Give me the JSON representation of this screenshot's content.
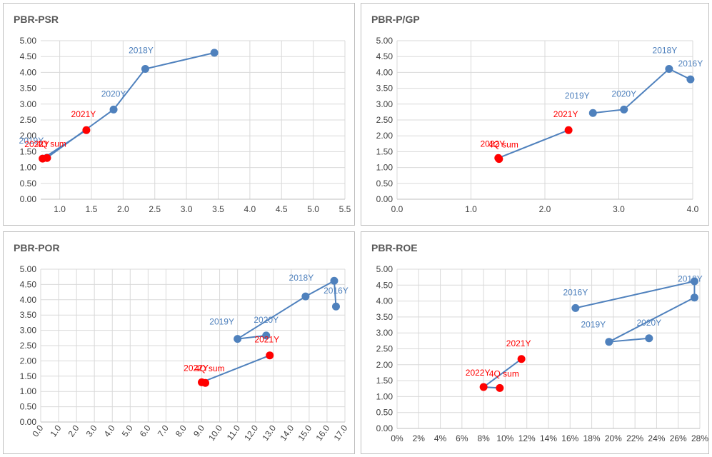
{
  "colors": {
    "blue": "#4f81bd",
    "red": "#ff0000",
    "grid": "#d9d9d9",
    "axis_text": "#404040"
  },
  "chart_data": [
    {
      "type": "scatter",
      "title": "PBR-PSR",
      "xlabel": "",
      "ylabel": "",
      "xlim": [
        0.7,
        5.5
      ],
      "ylim": [
        0,
        5
      ],
      "xticks": [
        "1.0",
        "1.5",
        "2.0",
        "2.5",
        "3.0",
        "3.5",
        "4.0",
        "4.5",
        "5.0",
        "5.5"
      ],
      "yticks": [
        "0.00",
        "0.50",
        "1.00",
        "1.50",
        "2.00",
        "2.50",
        "3.00",
        "3.50",
        "4.00",
        "4.50",
        "5.00"
      ],
      "grid": true,
      "series": [
        {
          "color": "blue",
          "points": [
            {
              "x": 3.44,
              "y": 4.62,
              "label": ""
            },
            {
              "x": 2.35,
              "y": 4.11,
              "label": "2018Y"
            },
            {
              "x": 1.85,
              "y": 2.83,
              "label": "2020Y"
            },
            {
              "x": 0.8,
              "y": 1.31,
              "label": "2019Y"
            }
          ]
        },
        {
          "color": "red",
          "points": [
            {
              "x": 1.42,
              "y": 2.18,
              "label": "2021Y"
            },
            {
              "x": 0.73,
              "y": 1.28,
              "label": "2022Y"
            },
            {
              "x": 0.8,
              "y": 1.3,
              "label": "4Q sum"
            }
          ]
        }
      ]
    },
    {
      "type": "scatter",
      "title": "PBR-P/GP",
      "xlabel": "",
      "ylabel": "",
      "xlim": [
        0,
        4
      ],
      "ylim": [
        0,
        5
      ],
      "xticks": [
        "0.0",
        "1.0",
        "2.0",
        "3.0",
        "4.0"
      ],
      "yticks": [
        "0.00",
        "0.50",
        "1.00",
        "1.50",
        "2.00",
        "2.50",
        "3.00",
        "3.50",
        "4.00",
        "4.50",
        "5.00"
      ],
      "grid": true,
      "series": [
        {
          "color": "blue",
          "points": [
            {
              "x": 3.97,
              "y": 3.78,
              "label": "2016Y"
            },
            {
              "x": 3.68,
              "y": 4.11,
              "label": "2018Y"
            },
            {
              "x": 3.07,
              "y": 2.83,
              "label": "2020Y"
            },
            {
              "x": 2.65,
              "y": 2.72,
              "label": "2019Y"
            }
          ]
        },
        {
          "color": "red",
          "points": [
            {
              "x": 2.32,
              "y": 2.18,
              "label": "2021Y"
            },
            {
              "x": 1.37,
              "y": 1.3,
              "label": "2022Y"
            },
            {
              "x": 1.38,
              "y": 1.27,
              "label": "4Q sum"
            }
          ]
        }
      ]
    },
    {
      "type": "scatter",
      "title": "PBR-POR",
      "xlabel": "",
      "ylabel": "",
      "xlim": [
        0,
        17
      ],
      "ylim": [
        0,
        5
      ],
      "xticks": [
        "0.0",
        "1.0",
        "2.0",
        "3.0",
        "4.0",
        "5.0",
        "6.0",
        "7.0",
        "8.0",
        "9.0",
        "10.0",
        "11.0",
        "12.0",
        "13.0",
        "14.0",
        "15.0",
        "16.0",
        "17.0"
      ],
      "yticks": [
        "0.00",
        "0.50",
        "1.00",
        "1.50",
        "2.00",
        "2.50",
        "3.00",
        "3.50",
        "4.00",
        "4.50",
        "5.00"
      ],
      "grid": true,
      "series": [
        {
          "color": "blue",
          "points": [
            {
              "x": 16.5,
              "y": 3.78,
              "label": "2016Y"
            },
            {
              "x": 16.4,
              "y": 4.62,
              "label": ""
            },
            {
              "x": 14.8,
              "y": 4.11,
              "label": "2018Y"
            },
            {
              "x": 11.0,
              "y": 2.72,
              "label": "2019Y"
            },
            {
              "x": 12.6,
              "y": 2.83,
              "label": "2020Y"
            }
          ]
        },
        {
          "color": "red",
          "points": [
            {
              "x": 12.8,
              "y": 2.18,
              "label": "2021Y"
            },
            {
              "x": 9.0,
              "y": 1.3,
              "label": "2022Y"
            },
            {
              "x": 9.2,
              "y": 1.28,
              "label": "4Q sum"
            }
          ]
        }
      ]
    },
    {
      "type": "scatter",
      "title": "PBR-ROE",
      "xlabel": "",
      "ylabel": "",
      "xlim": [
        0,
        28
      ],
      "ylim": [
        0,
        5
      ],
      "xticks": [
        "0%",
        "2%",
        "4%",
        "6%",
        "8%",
        "10%",
        "12%",
        "14%",
        "16%",
        "18%",
        "20%",
        "22%",
        "24%",
        "26%",
        "28%"
      ],
      "yticks": [
        "0.00",
        "0.50",
        "1.00",
        "1.50",
        "2.00",
        "2.50",
        "3.00",
        "3.50",
        "4.00",
        "4.50",
        "5.00"
      ],
      "grid": true,
      "series": [
        {
          "color": "blue",
          "points": [
            {
              "x": 16.5,
              "y": 3.78,
              "label": "2016Y"
            },
            {
              "x": 27.5,
              "y": 4.62,
              "label": ""
            },
            {
              "x": 27.5,
              "y": 4.11,
              "label": "2018Y"
            },
            {
              "x": 19.6,
              "y": 2.72,
              "label": "2019Y"
            },
            {
              "x": 23.3,
              "y": 2.83,
              "label": "2020Y"
            }
          ]
        },
        {
          "color": "red",
          "points": [
            {
              "x": 11.5,
              "y": 2.18,
              "label": "2021Y"
            },
            {
              "x": 8.0,
              "y": 1.3,
              "label": "2022Y"
            },
            {
              "x": 9.5,
              "y": 1.27,
              "label": "4Q sum"
            }
          ]
        }
      ]
    }
  ]
}
